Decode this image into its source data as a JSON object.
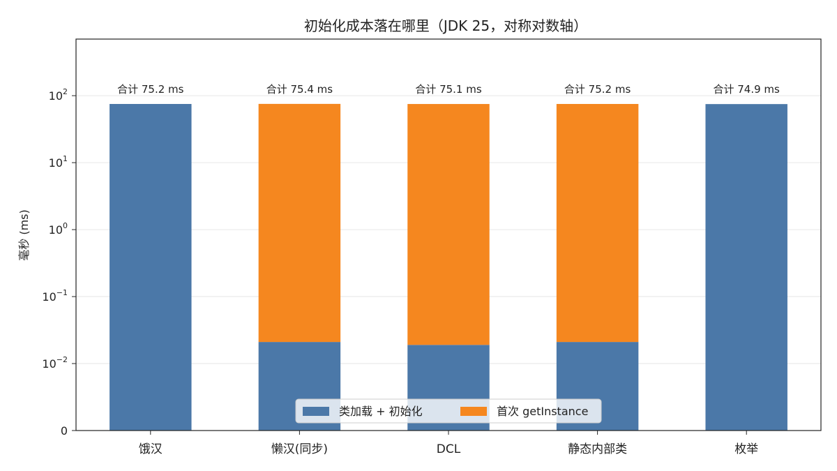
{
  "chart_data": {
    "type": "bar",
    "stacked": true,
    "title": "初始化成本落在哪里（JDK 25，对称对数轴）",
    "xlabel": "",
    "ylabel": "毫秒 (ms)",
    "yscale": "symlog",
    "ylim": [
      0,
      700
    ],
    "yticks": [
      {
        "value": 0,
        "base": "0",
        "exp": ""
      },
      {
        "value": 0.01,
        "base": "10",
        "exp": "−2"
      },
      {
        "value": 0.1,
        "base": "10",
        "exp": "−1"
      },
      {
        "value": 1,
        "base": "10",
        "exp": "0"
      },
      {
        "value": 10,
        "base": "10",
        "exp": "1"
      },
      {
        "value": 100,
        "base": "10",
        "exp": "2"
      }
    ],
    "grid": "horizontal",
    "legend_position": "bottom-center",
    "categories": [
      "饿汉",
      "懒汉(同步)",
      "DCL",
      "静态内部类",
      "枚举"
    ],
    "series": [
      {
        "name": "类加载 + 初始化",
        "color": "#4b78a8",
        "values": [
          75.2,
          0.021,
          0.019,
          0.021,
          74.9
        ]
      },
      {
        "name": "首次 getInstance",
        "color": "#f5871f",
        "values": [
          0,
          75.38,
          75.08,
          75.18,
          0
        ]
      }
    ],
    "totals": [
      "合计 75.2 ms",
      "合计 75.4 ms",
      "合计 75.1 ms",
      "合计 75.2 ms",
      "合计 74.9 ms"
    ]
  }
}
